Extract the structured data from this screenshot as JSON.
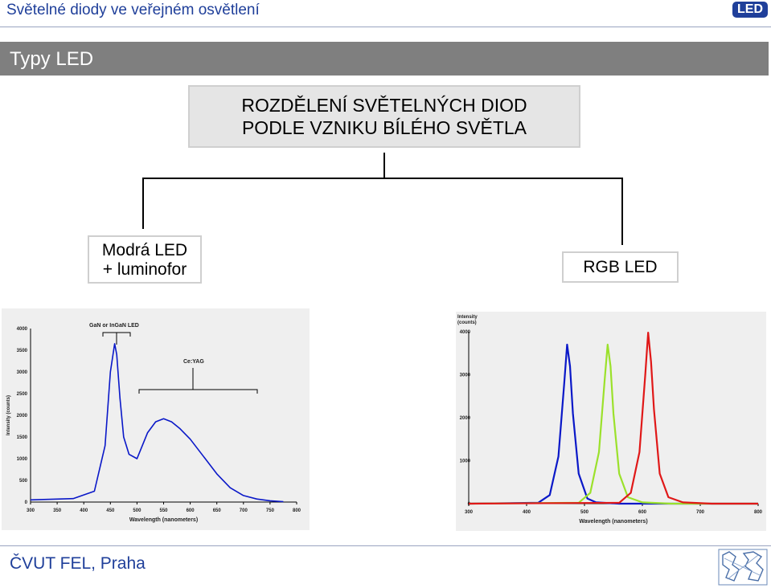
{
  "header": {
    "title": "Světelné diody ve veřejném osvětlení",
    "badge": "LED"
  },
  "section": {
    "title": "Typy LED"
  },
  "diagram": {
    "root_line1": "ROZDĚLENÍ SVĚTELNÝCH DIOD",
    "root_line2": "PODLE VZNIKU BÍLÉHO SVĚTLA",
    "left_line1": "Modrá LED",
    "left_line2": "+ luminofor",
    "right": "RGB LED"
  },
  "chart_data": [
    {
      "type": "line",
      "title": "",
      "xlabel": "Wavelength (nanometers)",
      "ylabel": "Intensity (counts)",
      "xlim": [
        300,
        800
      ],
      "ylim": [
        0,
        4000
      ],
      "x_ticks": [
        "300",
        "350",
        "400",
        "450",
        "500",
        "550",
        "600",
        "650",
        "700",
        "750",
        "800"
      ],
      "y_ticks": [
        "0",
        "500",
        "1000",
        "1500",
        "2000",
        "2500",
        "3000",
        "3500",
        "4000"
      ],
      "annotations": [
        "GaN or InGaN  LED",
        "Ce:YAG"
      ],
      "series": [
        {
          "color": "#0a18c8",
          "x": [
            300,
            380,
            420,
            440,
            450,
            458,
            462,
            468,
            475,
            485,
            500,
            510,
            520,
            535,
            550,
            565,
            580,
            600,
            625,
            650,
            675,
            700,
            725,
            750,
            775
          ],
          "y": [
            50,
            80,
            250,
            1300,
            3000,
            3650,
            3400,
            2400,
            1500,
            1100,
            1000,
            1300,
            1600,
            1850,
            1920,
            1850,
            1700,
            1450,
            1050,
            650,
            330,
            150,
            70,
            30,
            10
          ]
        }
      ]
    },
    {
      "type": "line",
      "title": "",
      "xlabel": "Wavelength (nanometers)",
      "ylabel": "Intensity (counts)",
      "xlim": [
        300,
        800
      ],
      "ylim": [
        0,
        4000
      ],
      "x_ticks": [
        "300",
        "400",
        "500",
        "600",
        "700",
        "800"
      ],
      "y_ticks": [
        "0",
        "1000",
        "2000",
        "3000",
        "4000"
      ],
      "series": [
        {
          "color": "#0a18c8",
          "x": [
            300,
            420,
            440,
            455,
            465,
            470,
            475,
            480,
            490,
            505,
            520,
            560,
            800
          ],
          "y": [
            0,
            20,
            200,
            1100,
            2800,
            3700,
            3200,
            2100,
            700,
            120,
            30,
            0,
            0
          ]
        },
        {
          "color": "#9be12b",
          "x": [
            300,
            490,
            510,
            525,
            535,
            540,
            545,
            550,
            560,
            575,
            600,
            650,
            800
          ],
          "y": [
            0,
            20,
            250,
            1200,
            2900,
            3700,
            3200,
            2100,
            700,
            150,
            30,
            0,
            0
          ]
        },
        {
          "color": "#e01818",
          "x": [
            300,
            560,
            580,
            595,
            605,
            610,
            615,
            620,
            630,
            645,
            670,
            720,
            800
          ],
          "y": [
            0,
            20,
            250,
            1200,
            3000,
            3980,
            3300,
            2200,
            700,
            150,
            30,
            0,
            0
          ]
        }
      ]
    }
  ]
}
